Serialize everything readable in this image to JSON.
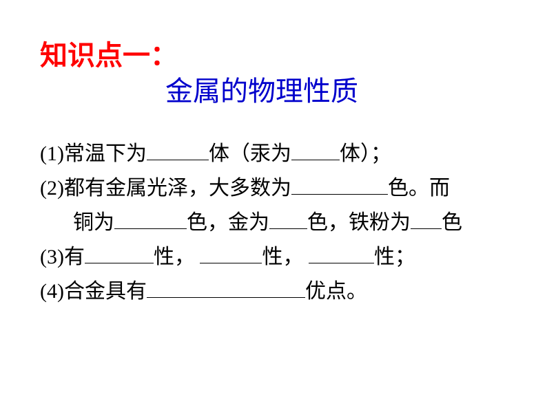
{
  "section_label": "知识点一：",
  "title": "金属的物理性质",
  "items": {
    "l1_a": "(1)常温下为",
    "l1_b": "体（汞为",
    "l1_c": "体）；",
    "l2_a": "(2)都有金属光泽，大多数为",
    "l2_b": "色。而",
    "l2_c": "铜为",
    "l2_d": "色，金为",
    "l2_e": "色，铁粉为",
    "l2_f": "色",
    "l3_a": "(3)有",
    "l3_b": "性，",
    "l3_c": "性，",
    "l3_d": "性；",
    "l4_a": "(4)合金具有",
    "l4_b": "优点。"
  },
  "colors": {
    "section": "#ff0000",
    "title": "#0000cc",
    "body": "#000000",
    "background": "#ffffff"
  },
  "fontsize": {
    "heading": 40,
    "body": 30
  }
}
